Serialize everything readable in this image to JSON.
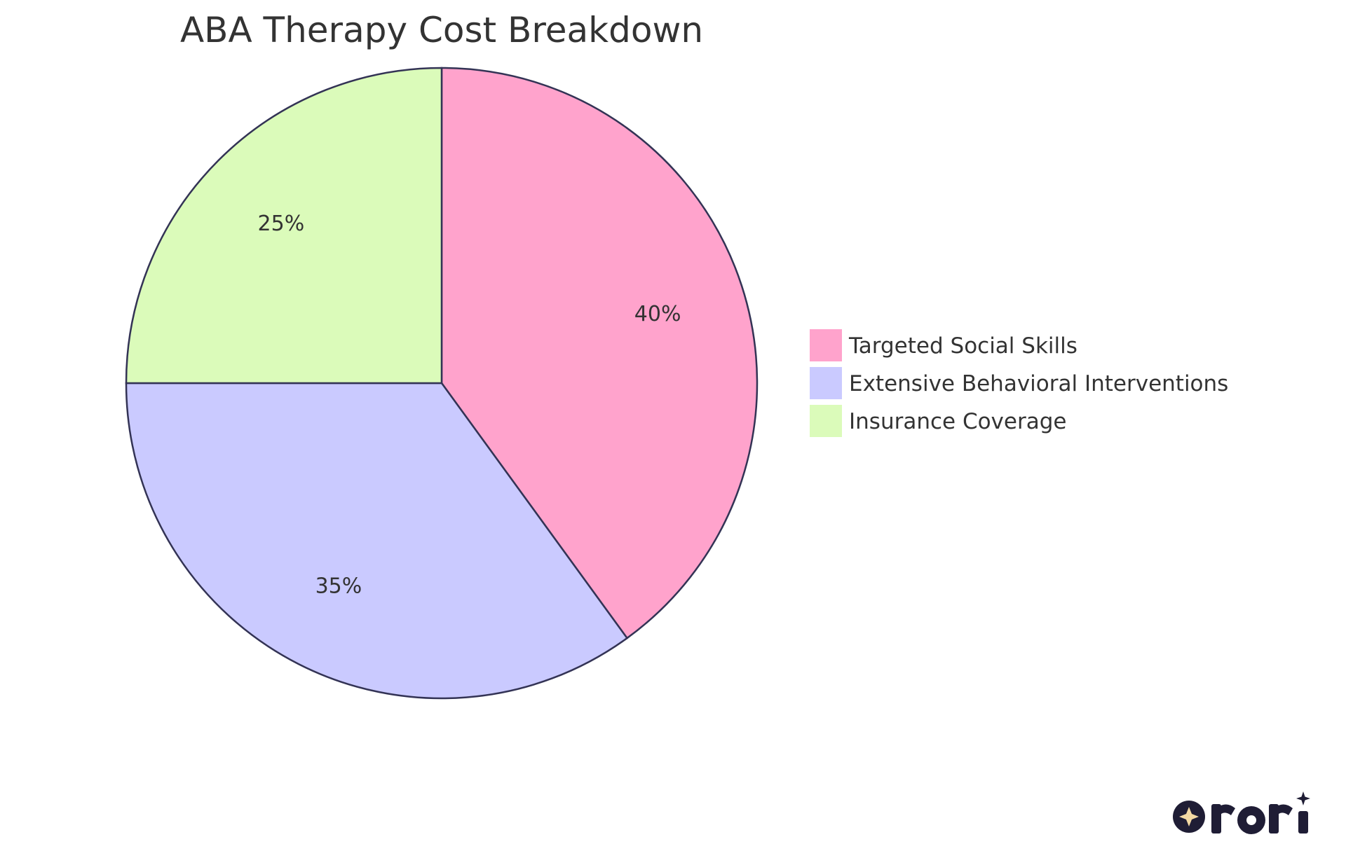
{
  "chart_data": {
    "type": "pie",
    "title": "ABA Therapy Cost Breakdown",
    "slices": [
      {
        "label": "Targeted Social Skills",
        "value": 40,
        "display": "40%",
        "color": "#FFA3CC"
      },
      {
        "label": "Extensive Behavioral Interventions",
        "value": 35,
        "display": "35%",
        "color": "#CACAFF"
      },
      {
        "label": "Insurance Coverage",
        "value": 25,
        "display": "25%",
        "color": "#DBFBBA"
      }
    ],
    "legend_position": "right",
    "start_angle": "top",
    "direction": "clockwise"
  },
  "branding": {
    "logo_text": "rori",
    "logo_color": "#1F1D35",
    "logo_accent": "#F3D9A4"
  }
}
